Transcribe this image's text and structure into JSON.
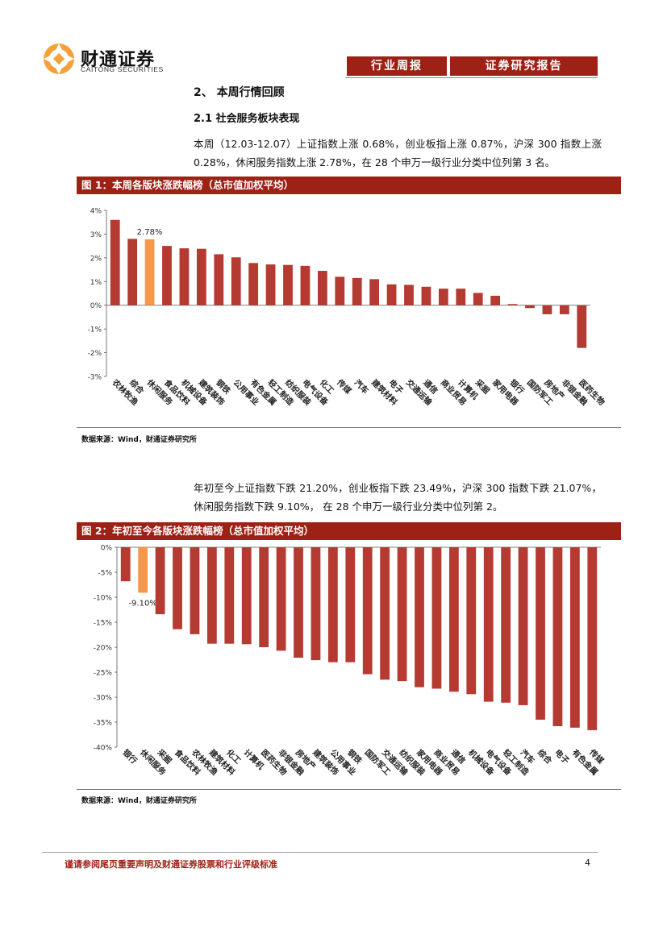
{
  "header": {
    "logo_cn": "财通证券",
    "logo_en": "CAITONG SECURITIES",
    "tag1": "行业周报",
    "tag2": "证券研究报告"
  },
  "section": {
    "h2": "2、 本周行情回顾",
    "h3": "2.1  社会服务板块表现",
    "para1": "本周（12.03-12.07）上证指数上涨 0.68%，创业板指上涨 0.87%，沪深 300 指数上涨 0.28%，休闲服务指数上涨 2.78%，在 28 个申万一级行业分类中位列第 3 名。",
    "para2": "年初至今上证指数下跌 21.20%，创业板指下跌 23.49%，沪深 300 指数下跌 21.07%，休闲服务指数下跌 9.10%， 在 28 个申万一级行业分类中位列第 2。"
  },
  "figure1": {
    "title": "图 1：本周各版块涨跌幅榜（总市值加权平均）",
    "source": "数据来源：Wind，财通证券研究所"
  },
  "figure2": {
    "title": "图 2：年初至今各版块涨跌幅榜（总市值加权平均）",
    "source": "数据来源：Wind，财通证券研究所"
  },
  "chart_data": [
    {
      "type": "bar",
      "title": "本周各版块涨跌幅榜（总市值加权平均）",
      "categories": [
        "农林牧渔",
        "综合",
        "休闲服务",
        "食品饮料",
        "机械设备",
        "建筑装饰",
        "钢铁",
        "公用事业",
        "有色金属",
        "轻工制造",
        "纺织服装",
        "电气设备",
        "化工",
        "传媒",
        "汽车",
        "建筑材料",
        "电子",
        "交通运输",
        "通信",
        "商业贸易",
        "计算机",
        "采掘",
        "家用电器",
        "银行",
        "国防军工",
        "房地产",
        "非银金融",
        "医药生物"
      ],
      "values": [
        3.6,
        2.8,
        2.78,
        2.5,
        2.4,
        2.38,
        2.15,
        2.02,
        1.78,
        1.72,
        1.7,
        1.66,
        1.45,
        1.2,
        1.15,
        1.1,
        0.88,
        0.86,
        0.78,
        0.7,
        0.7,
        0.52,
        0.4,
        0.05,
        -0.12,
        -0.38,
        -0.38,
        -1.8
      ],
      "highlight_index": 2,
      "highlight_label": "2.78%",
      "yticks": [
        "4%",
        "3%",
        "2%",
        "1%",
        "0%",
        "-1%",
        "-2%",
        "-3%"
      ],
      "ylim": [
        -3,
        4
      ],
      "colors": {
        "bar": "#b53a31",
        "highlight": "#f7974b"
      }
    },
    {
      "type": "bar",
      "title": "年初至今各版块涨跌幅榜（总市值加权平均）",
      "categories": [
        "银行",
        "休闲服务",
        "采掘",
        "食品饮料",
        "农林牧渔",
        "建筑材料",
        "化工",
        "计算机",
        "医药生物",
        "非银金融",
        "房地产",
        "建筑装饰",
        "公用事业",
        "钢铁",
        "国防军工",
        "交通运输",
        "纺织服装",
        "家用电器",
        "商业贸易",
        "通信",
        "机械设备",
        "电气设备",
        "轻工制造",
        "汽车",
        "综合",
        "电子",
        "有色金属",
        "传媒"
      ],
      "values": [
        -6.8,
        -9.1,
        -13.4,
        -16.4,
        -17.4,
        -19.3,
        -19.3,
        -19.4,
        -20.0,
        -20.7,
        -22.1,
        -22.6,
        -23.0,
        -23.0,
        -25.4,
        -26.5,
        -26.8,
        -28.0,
        -28.3,
        -28.9,
        -29.4,
        -30.9,
        -31.1,
        -31.6,
        -34.5,
        -35.8,
        -36.1,
        -36.6
      ],
      "highlight_index": 1,
      "highlight_label": "-9.10%",
      "yticks": [
        "0%",
        "-5%",
        "-10%",
        "-15%",
        "-20%",
        "-25%",
        "-30%",
        "-35%",
        "-40%"
      ],
      "ylim": [
        -40,
        0
      ],
      "colors": {
        "bar": "#b53a31",
        "highlight": "#f7974b"
      }
    }
  ],
  "footer": {
    "disclaimer": "谨请参阅尾页重要声明及财通证券股票和行业评级标准",
    "page": "4"
  }
}
